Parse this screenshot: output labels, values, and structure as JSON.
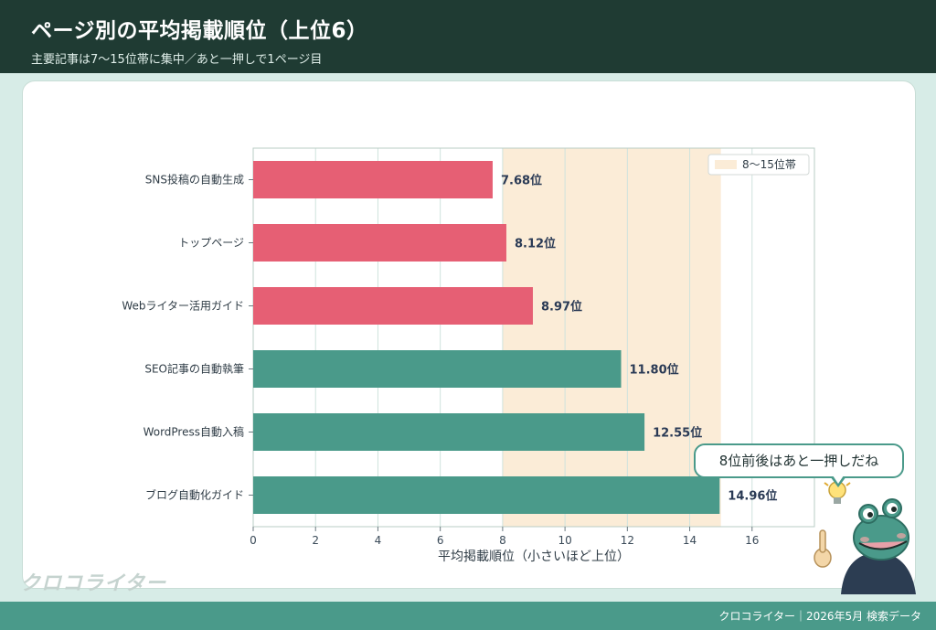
{
  "header": {
    "title": "ページ別の平均掲載順位（上位6）",
    "subtitle": "主要記事は7〜15位帯に集中／あと一押しで1ページ目"
  },
  "footer": {
    "note": "クロコライター｜2026年5月 検索データ"
  },
  "logo": {
    "text": "クロコライター"
  },
  "callout": {
    "text": "8位前後はあと一押しだね"
  },
  "colors": {
    "header_bg": "#1f3b33",
    "page_bg": "#d7ece7",
    "footer_bg": "#4a9a8a",
    "bar_red": "#e65f74",
    "bar_green": "#4a9a8a",
    "band": "#fbecd7",
    "label_text": "#2a3a55"
  },
  "chart_data": {
    "type": "bar",
    "orientation": "horizontal",
    "categories": [
      "SNS投稿の自動生成",
      "トップページ",
      "Webライター活用ガイド",
      "SEO記事の自動執筆",
      "WordPress自動入稿",
      "ブログ自動化ガイド"
    ],
    "values": [
      7.68,
      8.12,
      8.97,
      11.8,
      12.55,
      14.96
    ],
    "value_labels": [
      "7.68位",
      "8.12位",
      "8.97位",
      "11.80位",
      "12.55位",
      "14.96位"
    ],
    "bar_colors": [
      "#e65f74",
      "#e65f74",
      "#e65f74",
      "#4a9a8a",
      "#4a9a8a",
      "#4a9a8a"
    ],
    "xlabel": "平均掲載順位（小さいほど上位）",
    "xlim": [
      0,
      18
    ],
    "xticks": [
      0,
      2,
      4,
      6,
      8,
      10,
      12,
      14,
      16
    ],
    "grid": true,
    "band": {
      "from": 8,
      "to": 15,
      "label": "8〜15位帯"
    },
    "legend": "top-right"
  }
}
